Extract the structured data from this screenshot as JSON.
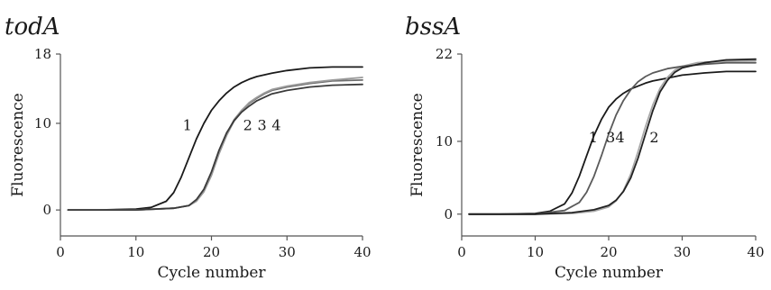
{
  "chart_data": [
    {
      "type": "line",
      "title": "todA",
      "xlabel": "Cycle number",
      "ylabel": "Fluorescence",
      "xlim": [
        0,
        40
      ],
      "ylim": [
        -3,
        18
      ],
      "xticks": [
        "0",
        "10",
        "20",
        "30",
        "40"
      ],
      "yticks": [
        "0",
        "10",
        "18"
      ],
      "ytick_values": [
        0,
        10,
        18
      ],
      "grid": false,
      "legend": "none",
      "series": [
        {
          "name": "1",
          "color": "#1a1a1a",
          "x": [
            1,
            5,
            10,
            12,
            14,
            15,
            16,
            17,
            18,
            19,
            20,
            21,
            22,
            23,
            24,
            25,
            26,
            28,
            30,
            33,
            36,
            40
          ],
          "y": [
            0,
            0,
            0.1,
            0.3,
            1,
            2,
            3.8,
            6,
            8.2,
            10,
            11.5,
            12.6,
            13.5,
            14.2,
            14.7,
            15.1,
            15.4,
            15.8,
            16.1,
            16.4,
            16.5,
            16.5
          ]
        },
        {
          "name": "2",
          "color": "#6e6e6e",
          "x": [
            1,
            5,
            10,
            15,
            17,
            18,
            19,
            20,
            21,
            22,
            23,
            24,
            25,
            26,
            27,
            28,
            30,
            33,
            36,
            40
          ],
          "y": [
            0,
            0,
            0,
            0.2,
            0.5,
            1.1,
            2.3,
            4.3,
            6.8,
            8.8,
            10.4,
            11.5,
            12.3,
            12.9,
            13.4,
            13.8,
            14.2,
            14.6,
            14.9,
            15.0
          ]
        },
        {
          "name": "3",
          "color": "#9a9a9a",
          "x": [
            1,
            5,
            10,
            15,
            17,
            18,
            19,
            20,
            21,
            22,
            23,
            24,
            25,
            26,
            27,
            28,
            30,
            33,
            36,
            40
          ],
          "y": [
            0,
            0,
            0,
            0.2,
            0.5,
            1.0,
            2.1,
            4.0,
            6.5,
            8.6,
            10.3,
            11.5,
            12.4,
            13.0,
            13.5,
            13.9,
            14.3,
            14.7,
            15.0,
            15.3
          ]
        },
        {
          "name": "4",
          "color": "#3a3a3a",
          "x": [
            1,
            5,
            10,
            15,
            17,
            18,
            19,
            20,
            21,
            22,
            23,
            24,
            25,
            26,
            27,
            28,
            30,
            33,
            36,
            40
          ],
          "y": [
            0,
            0,
            0,
            0.2,
            0.5,
            1.2,
            2.4,
            4.4,
            6.9,
            8.9,
            10.3,
            11.3,
            12.0,
            12.6,
            13.0,
            13.4,
            13.8,
            14.2,
            14.4,
            14.5
          ]
        }
      ],
      "curve_labels": [
        {
          "text": "1",
          "x": 16.8,
          "y": 9.2
        },
        {
          "text": "2",
          "x": 24.8,
          "y": 9.2
        },
        {
          "text": "3",
          "x": 26.7,
          "y": 9.2
        },
        {
          "text": "4",
          "x": 28.6,
          "y": 9.2
        }
      ]
    },
    {
      "type": "line",
      "title": "bssA",
      "xlabel": "Cycle number",
      "ylabel": "Fluorescence",
      "xlim": [
        0,
        40
      ],
      "ylim": [
        -3,
        22
      ],
      "xticks": [
        "0",
        "10",
        "20",
        "30",
        "40"
      ],
      "yticks": [
        "0",
        "10",
        "22"
      ],
      "ytick_values": [
        0,
        10,
        22
      ],
      "grid": false,
      "legend": "none",
      "series": [
        {
          "name": "1",
          "color": "#1a1a1a",
          "x": [
            1,
            5,
            10,
            12,
            14,
            15,
            16,
            17,
            18,
            19,
            20,
            21,
            22,
            23,
            24,
            25,
            26,
            28,
            30,
            33,
            36,
            40
          ],
          "y": [
            0,
            0,
            0.1,
            0.4,
            1.4,
            2.9,
            5.2,
            8,
            10.8,
            13,
            14.7,
            15.8,
            16.6,
            17.2,
            17.6,
            18,
            18.3,
            18.7,
            19.1,
            19.4,
            19.6,
            19.6
          ]
        },
        {
          "name": "2",
          "color": "#a8a8a8",
          "x": [
            1,
            5,
            10,
            15,
            18,
            20,
            21,
            22,
            23,
            24,
            25,
            26,
            27,
            28,
            29,
            30,
            32,
            35,
            40
          ],
          "y": [
            0,
            0,
            0,
            0.1,
            0.4,
            1.0,
            1.8,
            3.2,
            5.5,
            8.6,
            12,
            15,
            17.3,
            18.8,
            19.8,
            20.3,
            20.8,
            21,
            21.1
          ]
        },
        {
          "name": "3",
          "color": "#5a5a5a",
          "x": [
            1,
            5,
            10,
            14,
            16,
            17,
            18,
            19,
            20,
            21,
            22,
            23,
            24,
            25,
            26,
            28,
            30,
            33,
            36,
            40
          ],
          "y": [
            0,
            0,
            0,
            0.5,
            1.6,
            3,
            5.2,
            8,
            11,
            13.6,
            15.6,
            17.1,
            18.2,
            18.9,
            19.4,
            20,
            20.3,
            20.6,
            20.8,
            20.8
          ]
        },
        {
          "name": "4",
          "color": "#222222",
          "x": [
            1,
            5,
            10,
            15,
            18,
            20,
            21,
            22,
            23,
            24,
            25,
            26,
            27,
            28,
            29,
            30,
            33,
            36,
            40
          ],
          "y": [
            0,
            0,
            0,
            0.2,
            0.6,
            1.2,
            1.9,
            3.1,
            5,
            7.7,
            11,
            14.2,
            16.8,
            18.4,
            19.5,
            20.1,
            20.8,
            21.2,
            21.3
          ]
        }
      ],
      "curve_labels": [
        {
          "text": "1",
          "x": 17.9,
          "y": 9.9
        },
        {
          "text": "34",
          "x": 20.9,
          "y": 9.9
        },
        {
          "text": "2",
          "x": 26.2,
          "y": 9.9
        }
      ]
    }
  ]
}
